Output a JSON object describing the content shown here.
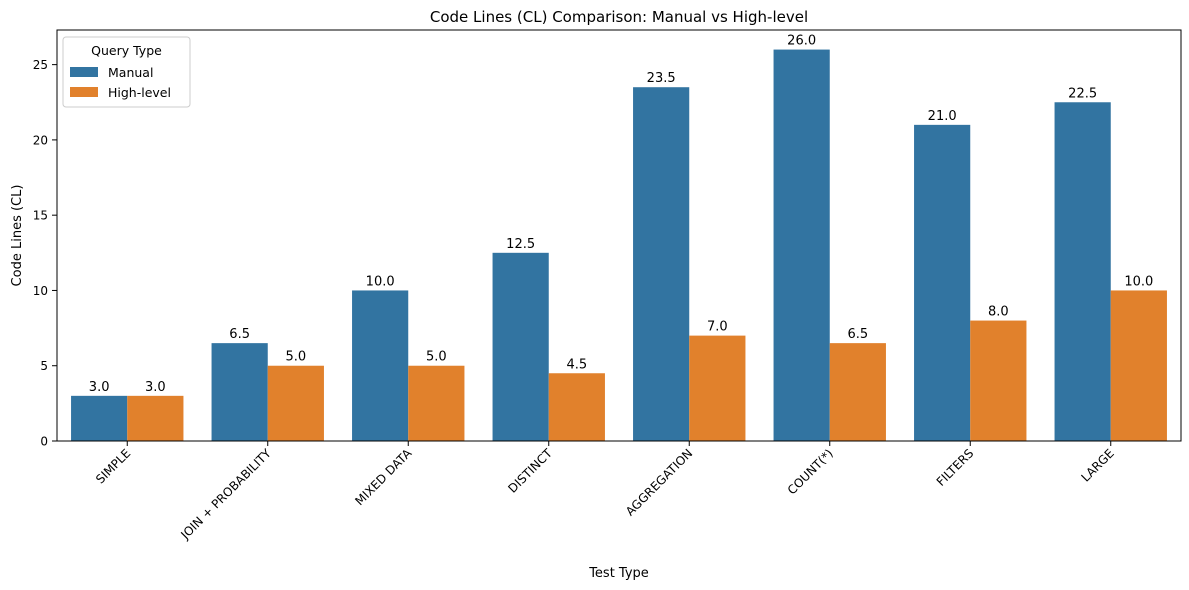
{
  "chart_data": {
    "type": "bar",
    "title": "Code Lines (CL) Comparison: Manual vs High-level",
    "xlabel": "Test Type",
    "ylabel": "Code Lines (CL)",
    "categories": [
      "SIMPLE",
      "JOIN + PROBABILITY",
      "MIXED DATA",
      "DISTINCT",
      "AGGREGATION",
      "COUNT(*)",
      "FILTERS",
      "LARGE"
    ],
    "series": [
      {
        "name": "Manual",
        "values": [
          3.0,
          6.5,
          10.0,
          12.5,
          23.5,
          26.0,
          21.0,
          22.5
        ],
        "color": "#3274a1"
      },
      {
        "name": "High-level",
        "values": [
          3.0,
          5.0,
          5.0,
          4.5,
          7.0,
          6.5,
          8.0,
          10.0
        ],
        "color": "#e1812c"
      }
    ],
    "data_labels": {
      "Manual": [
        "3.0",
        "6.5",
        "10.0",
        "12.5",
        "23.5",
        "26.0",
        "21.0",
        "22.5"
      ],
      "High-level": [
        "3.0",
        "5.0",
        "5.0",
        "4.5",
        "7.0",
        "6.5",
        "8.0",
        "10.0"
      ]
    },
    "yticks": [
      0,
      5,
      10,
      15,
      20,
      25
    ],
    "ylim": [
      0,
      27.3
    ],
    "legend": {
      "title": "Query Type",
      "placement": "top-left"
    },
    "grid": false,
    "xtick_rotation_deg": 45
  }
}
